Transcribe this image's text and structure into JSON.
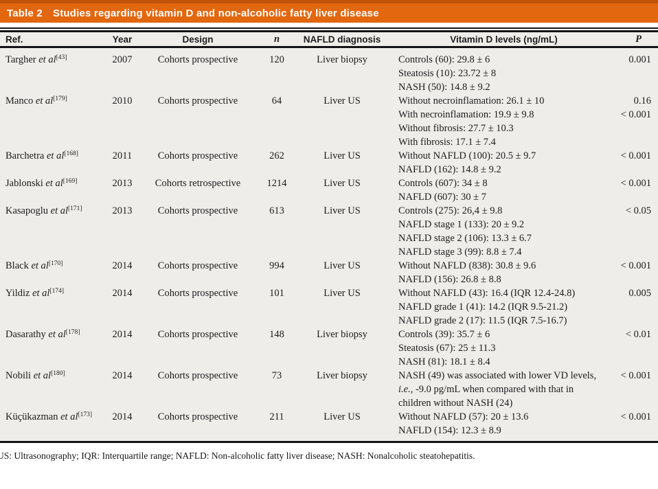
{
  "title": {
    "label": "Table 2",
    "text": "Studies regarding vitamin D and non-alcoholic fatty liver disease"
  },
  "columns": {
    "ref": "Ref.",
    "year": "Year",
    "design": "Design",
    "n": "n",
    "diagnosis": "NAFLD diagnosis",
    "levels": "Vitamin D levels (ng/mL)",
    "p": "P"
  },
  "rows": [
    {
      "ref_name": "Targher",
      "etal": "et al",
      "cite": "[43]",
      "year": "2007",
      "design": "Cohorts prospective",
      "n": "120",
      "diagnosis": "Liver biopsy",
      "levels": [
        {
          "text": "Controls (60): 29.8 ± 6",
          "p": "0.001"
        },
        {
          "text": "Steatosis (10): 23.72 ± 8",
          "p": ""
        },
        {
          "text": "NASH (50): 14.8 ± 9.2",
          "p": ""
        }
      ]
    },
    {
      "ref_name": "Manco",
      "etal": "et al",
      "cite": "[179]",
      "year": "2010",
      "design": "Cohorts prospective",
      "n": "64",
      "diagnosis": "Liver US",
      "levels": [
        {
          "text": "Without necroinflamation: 26.1 ± 10",
          "p": "0.16"
        },
        {
          "text": "With necroinflamation: 19.9 ± 9.8",
          "p": "< 0.001"
        },
        {
          "text": "Without fibrosis: 27.7 ± 10.3",
          "p": ""
        },
        {
          "text": "With fibrosis: 17.1 ± 7.4",
          "p": ""
        }
      ]
    },
    {
      "ref_name": "Barchetra",
      "etal": "et al",
      "cite": "[168]",
      "year": "2011",
      "design": "Cohorts prospective",
      "n": "262",
      "diagnosis": "Liver US",
      "levels": [
        {
          "text": "Without NAFLD (100): 20.5 ± 9.7",
          "p": "< 0.001"
        },
        {
          "text": "NAFLD (162): 14.8 ± 9.2",
          "p": ""
        }
      ]
    },
    {
      "ref_name": "Jablonski",
      "etal": "et al",
      "cite": "[169]",
      "year": "2013",
      "design": "Cohorts retrospective",
      "n": "1214",
      "diagnosis": "Liver US",
      "levels": [
        {
          "text": "Controls (607): 34 ± 8",
          "p": "< 0.001"
        },
        {
          "text": "NAFLD (607): 30 ± 7",
          "p": ""
        }
      ]
    },
    {
      "ref_name": "Kasapoglu",
      "etal": "et al",
      "cite": "[171]",
      "year": "2013",
      "design": "Cohorts prospective",
      "n": "613",
      "diagnosis": "Liver US",
      "levels": [
        {
          "text": "Controls (275): 26,4 ± 9.8",
          "p": "< 0.05"
        },
        {
          "text": "NAFLD stage 1 (133): 20 ± 9.2",
          "p": ""
        },
        {
          "text": "NAFLD stage 2 (106): 13.3 ± 6.7",
          "p": ""
        },
        {
          "text": "NAFLD stage 3 (99): 8.8 ± 7.4",
          "p": ""
        }
      ]
    },
    {
      "ref_name": "Black",
      "etal": "et al",
      "cite": "[170]",
      "year": "2014",
      "design": "Cohorts prospective",
      "n": "994",
      "diagnosis": "Liver US",
      "levels": [
        {
          "text": "Without NAFLD (838): 30.8 ± 9.6",
          "p": "< 0.001"
        },
        {
          "text": "NAFLD (156): 26.8 ± 8.8",
          "p": ""
        }
      ]
    },
    {
      "ref_name": "Yildiz",
      "etal": "et al",
      "cite": "[174]",
      "year": "2014",
      "design": "Cohorts prospective",
      "n": "101",
      "diagnosis": "Liver US",
      "levels": [
        {
          "text": "Without NAFLD (43): 16.4 (IQR 12.4-24.8)",
          "p": "0.005"
        },
        {
          "text": "NAFLD grade 1 (41): 14.2 (IQR 9.5-21.2)",
          "p": ""
        },
        {
          "text": "NAFLD grade 2 (17): 11.5 (IQR 7.5-16.7)",
          "p": ""
        }
      ]
    },
    {
      "ref_name": "Dasarathy",
      "etal": "et al",
      "cite": "[178]",
      "year": "2014",
      "design": "Cohorts prospective",
      "n": "148",
      "diagnosis": "Liver biopsy",
      "levels": [
        {
          "text": "Controls (39): 35.7 ± 6",
          "p": "< 0.01"
        },
        {
          "text": "Steatosis (67): 25 ± 11.3",
          "p": ""
        },
        {
          "text": "NASH (81): 18.1 ± 8.4",
          "p": ""
        }
      ]
    },
    {
      "ref_name": "Nobili",
      "etal": "et al",
      "cite": "[180]",
      "year": "2014",
      "design": "Cohorts prospective",
      "n": "73",
      "diagnosis": "Liver biopsy",
      "levels": [
        {
          "text": "NASH (49) was associated with lower VD levels,",
          "p": "< 0.001"
        },
        {
          "italic_lead": "i.e.,",
          "text": " -9.0 pg/mL when compared with that in",
          "p": ""
        },
        {
          "text": "children without NASH (24)",
          "p": ""
        }
      ]
    },
    {
      "ref_name": "Küçükazman",
      "etal": "et al",
      "cite": "[173]",
      "year": "2014",
      "design": "Cohorts prospective",
      "n": "211",
      "diagnosis": "Liver US",
      "levels": [
        {
          "text": "Without NAFLD (57): 20 ± 13.6",
          "p": "< 0.001"
        },
        {
          "text": "NAFLD (154): 12.3 ± 8.9",
          "p": ""
        }
      ]
    }
  ],
  "footnote": "US: Ultrasonography; IQR: Interquartile range; NAFLD: Non-alcoholic fatty liver disease; NASH: Nonalcoholic steatohepatitis.",
  "colors": {
    "accent_orange": "#e2670e",
    "accent_orange_dark": "#bf5409",
    "table_background": "#efedea",
    "rule_black": "#141414"
  }
}
